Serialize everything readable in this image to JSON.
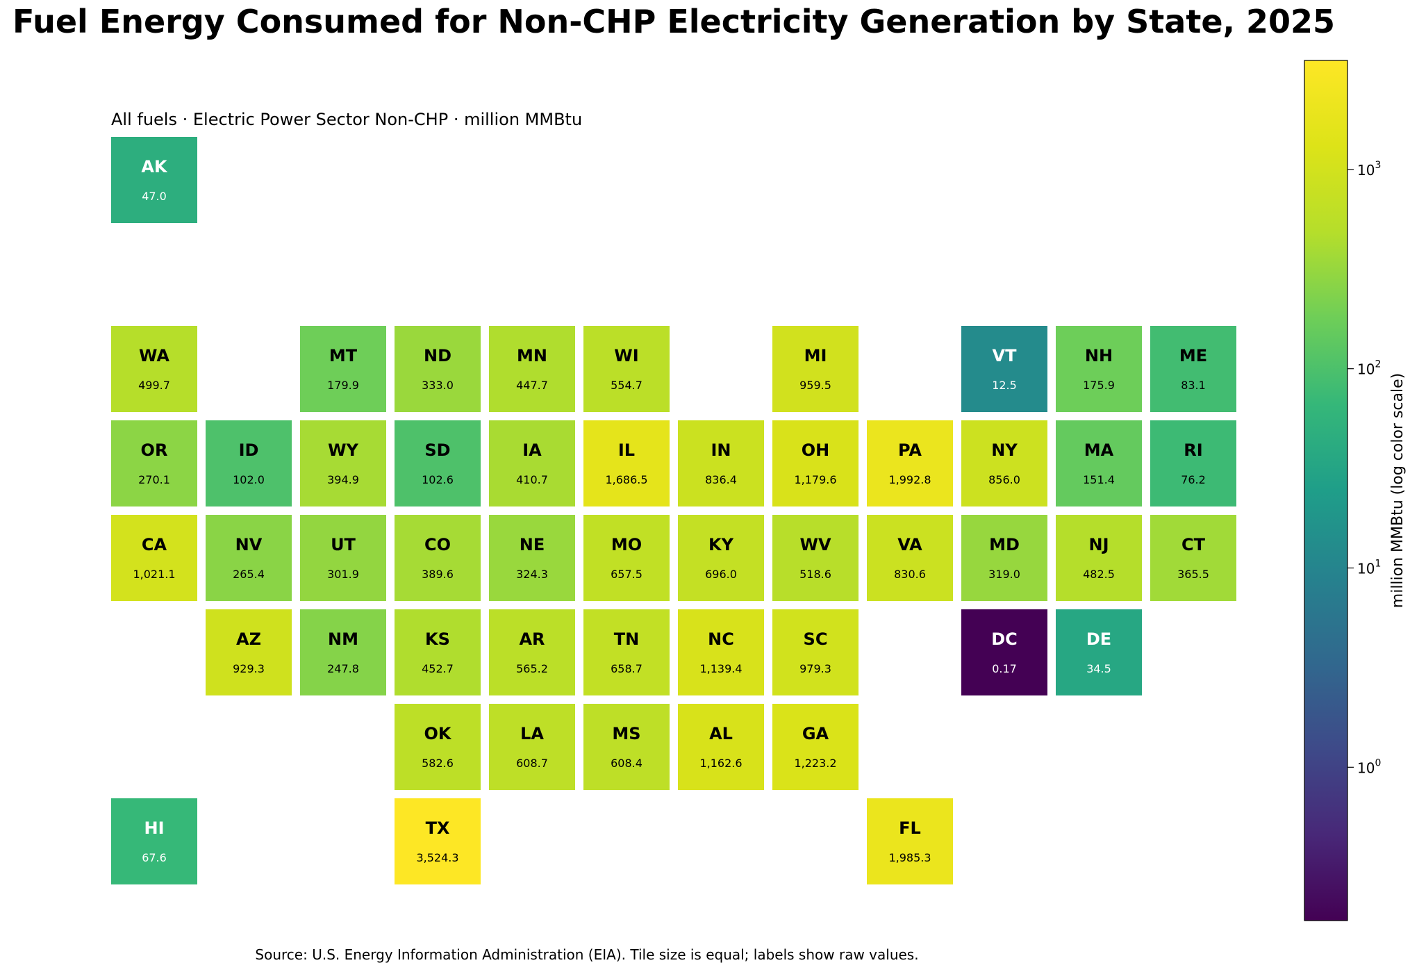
{
  "chart_data": {
    "type": "heatmap",
    "title": "Fuel Energy Consumed for Non-CHP Electricity Generation by State, 2025",
    "subtitle": "All fuels · Electric Power Sector Non-CHP · million MMBtu",
    "source": "Source: U.S. Energy Information Administration (EIA). Tile size is equal; labels show raw values.",
    "colormap": "viridis",
    "color_scale": "log",
    "colorbar": {
      "label": "million MMBtu (log color scale)",
      "range": [
        0.17,
        3524.3
      ],
      "ticks": [
        {
          "value": 1,
          "label": "10",
          "exp": "0"
        },
        {
          "value": 10,
          "label": "10",
          "exp": "1"
        },
        {
          "value": 100,
          "label": "10",
          "exp": "2"
        },
        {
          "value": 1000,
          "label": "10",
          "exp": "3"
        }
      ]
    },
    "states": [
      {
        "abbr": "AK",
        "value": 47.0,
        "label": "47.0",
        "row": 0,
        "col": 0
      },
      {
        "abbr": "WA",
        "value": 499.7,
        "label": "499.7",
        "row": 2,
        "col": 0
      },
      {
        "abbr": "MT",
        "value": 179.9,
        "label": "179.9",
        "row": 2,
        "col": 2
      },
      {
        "abbr": "ND",
        "value": 333.0,
        "label": "333.0",
        "row": 2,
        "col": 3
      },
      {
        "abbr": "MN",
        "value": 447.7,
        "label": "447.7",
        "row": 2,
        "col": 4
      },
      {
        "abbr": "WI",
        "value": 554.7,
        "label": "554.7",
        "row": 2,
        "col": 5
      },
      {
        "abbr": "MI",
        "value": 959.5,
        "label": "959.5",
        "row": 2,
        "col": 7
      },
      {
        "abbr": "VT",
        "value": 12.5,
        "label": "12.5",
        "row": 2,
        "col": 9
      },
      {
        "abbr": "NH",
        "value": 175.9,
        "label": "175.9",
        "row": 2,
        "col": 10
      },
      {
        "abbr": "ME",
        "value": 83.1,
        "label": "83.1",
        "row": 2,
        "col": 11
      },
      {
        "abbr": "OR",
        "value": 270.1,
        "label": "270.1",
        "row": 3,
        "col": 0
      },
      {
        "abbr": "ID",
        "value": 102.0,
        "label": "102.0",
        "row": 3,
        "col": 1
      },
      {
        "abbr": "WY",
        "value": 394.9,
        "label": "394.9",
        "row": 3,
        "col": 2
      },
      {
        "abbr": "SD",
        "value": 102.6,
        "label": "102.6",
        "row": 3,
        "col": 3
      },
      {
        "abbr": "IA",
        "value": 410.7,
        "label": "410.7",
        "row": 3,
        "col": 4
      },
      {
        "abbr": "IL",
        "value": 1686.5,
        "label": "1,686.5",
        "row": 3,
        "col": 5
      },
      {
        "abbr": "IN",
        "value": 836.4,
        "label": "836.4",
        "row": 3,
        "col": 6
      },
      {
        "abbr": "OH",
        "value": 1179.6,
        "label": "1,179.6",
        "row": 3,
        "col": 7
      },
      {
        "abbr": "PA",
        "value": 1992.8,
        "label": "1,992.8",
        "row": 3,
        "col": 8
      },
      {
        "abbr": "NY",
        "value": 856.0,
        "label": "856.0",
        "row": 3,
        "col": 9
      },
      {
        "abbr": "MA",
        "value": 151.4,
        "label": "151.4",
        "row": 3,
        "col": 10
      },
      {
        "abbr": "RI",
        "value": 76.2,
        "label": "76.2",
        "row": 3,
        "col": 11
      },
      {
        "abbr": "CA",
        "value": 1021.1,
        "label": "1,021.1",
        "row": 4,
        "col": 0
      },
      {
        "abbr": "NV",
        "value": 265.4,
        "label": "265.4",
        "row": 4,
        "col": 1
      },
      {
        "abbr": "UT",
        "value": 301.9,
        "label": "301.9",
        "row": 4,
        "col": 2
      },
      {
        "abbr": "CO",
        "value": 389.6,
        "label": "389.6",
        "row": 4,
        "col": 3
      },
      {
        "abbr": "NE",
        "value": 324.3,
        "label": "324.3",
        "row": 4,
        "col": 4
      },
      {
        "abbr": "MO",
        "value": 657.5,
        "label": "657.5",
        "row": 4,
        "col": 5
      },
      {
        "abbr": "KY",
        "value": 696.0,
        "label": "696.0",
        "row": 4,
        "col": 6
      },
      {
        "abbr": "WV",
        "value": 518.6,
        "label": "518.6",
        "row": 4,
        "col": 7
      },
      {
        "abbr": "VA",
        "value": 830.6,
        "label": "830.6",
        "row": 4,
        "col": 8
      },
      {
        "abbr": "MD",
        "value": 319.0,
        "label": "319.0",
        "row": 4,
        "col": 9
      },
      {
        "abbr": "NJ",
        "value": 482.5,
        "label": "482.5",
        "row": 4,
        "col": 10
      },
      {
        "abbr": "CT",
        "value": 365.5,
        "label": "365.5",
        "row": 4,
        "col": 11
      },
      {
        "abbr": "AZ",
        "value": 929.3,
        "label": "929.3",
        "row": 5,
        "col": 1
      },
      {
        "abbr": "NM",
        "value": 247.8,
        "label": "247.8",
        "row": 5,
        "col": 2
      },
      {
        "abbr": "KS",
        "value": 452.7,
        "label": "452.7",
        "row": 5,
        "col": 3
      },
      {
        "abbr": "AR",
        "value": 565.2,
        "label": "565.2",
        "row": 5,
        "col": 4
      },
      {
        "abbr": "TN",
        "value": 658.7,
        "label": "658.7",
        "row": 5,
        "col": 5
      },
      {
        "abbr": "NC",
        "value": 1139.4,
        "label": "1,139.4",
        "row": 5,
        "col": 6
      },
      {
        "abbr": "SC",
        "value": 979.3,
        "label": "979.3",
        "row": 5,
        "col": 7
      },
      {
        "abbr": "DC",
        "value": 0.17,
        "label": "0.17",
        "row": 5,
        "col": 9
      },
      {
        "abbr": "DE",
        "value": 34.5,
        "label": "34.5",
        "row": 5,
        "col": 10
      },
      {
        "abbr": "OK",
        "value": 582.6,
        "label": "582.6",
        "row": 6,
        "col": 3
      },
      {
        "abbr": "LA",
        "value": 608.7,
        "label": "608.7",
        "row": 6,
        "col": 4
      },
      {
        "abbr": "MS",
        "value": 608.4,
        "label": "608.4",
        "row": 6,
        "col": 5
      },
      {
        "abbr": "AL",
        "value": 1162.6,
        "label": "1,162.6",
        "row": 6,
        "col": 6
      },
      {
        "abbr": "GA",
        "value": 1223.2,
        "label": "1,223.2",
        "row": 6,
        "col": 7
      },
      {
        "abbr": "HI",
        "value": 67.6,
        "label": "67.6",
        "row": 7,
        "col": 0
      },
      {
        "abbr": "TX",
        "value": 3524.3,
        "label": "3,524.3",
        "row": 7,
        "col": 3
      },
      {
        "abbr": "FL",
        "value": 1985.3,
        "label": "1,985.3",
        "row": 7,
        "col": 8
      }
    ]
  }
}
